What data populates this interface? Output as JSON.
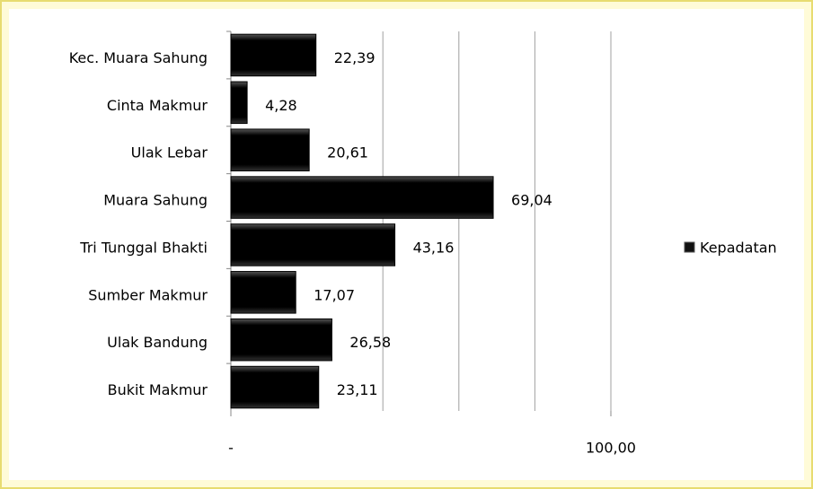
{
  "chart_data": {
    "type": "bar",
    "orientation": "horizontal",
    "categories": [
      "Kec. Muara Sahung",
      "Cinta Makmur",
      "Ulak Lebar",
      "Muara Sahung",
      "Tri Tunggal  Bhakti",
      "Sumber Makmur",
      "Ulak Bandung",
      "Bukit Makmur"
    ],
    "series": [
      {
        "name": "Kepadatan",
        "color": "#111111",
        "values": [
          22.39,
          4.28,
          20.61,
          69.04,
          43.16,
          17.07,
          26.58,
          23.11
        ],
        "value_labels": [
          "22,39",
          "4,28",
          "20,61",
          "69,04",
          "43,16",
          "17,07",
          "26,58",
          "23,11"
        ]
      }
    ],
    "xlim": [
      0,
      100
    ],
    "xticks": [
      {
        "value": 0,
        "label": "-"
      },
      {
        "value": 100,
        "label": "100,00"
      }
    ],
    "xgrid": [
      40,
      60,
      80,
      100
    ],
    "legend": "right"
  }
}
